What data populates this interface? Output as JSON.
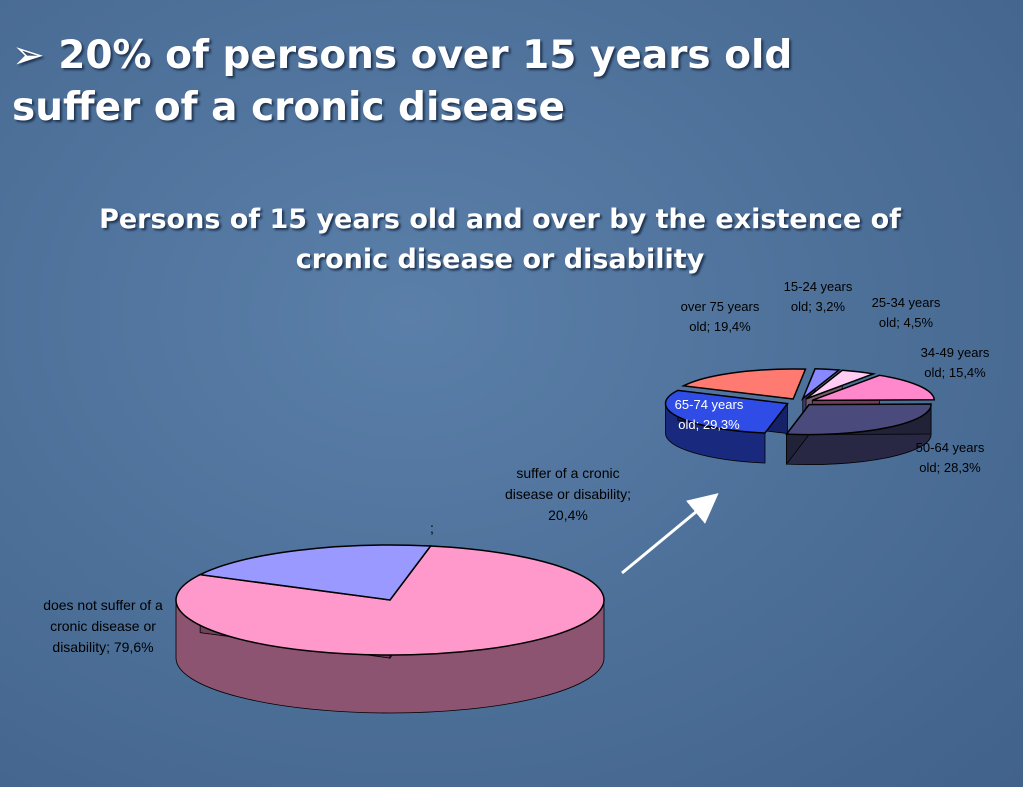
{
  "heading": "➢ 20% of persons over 15 years old suffer of a cronic disease",
  "chart_data": [
    {
      "type": "pie",
      "title": "Persons of 15 years old and over by the existence of cronic disease or disability",
      "values": [
        79.6,
        20.4
      ],
      "value_labels": [
        "does not suffer of a cronic disease or disability; 79,6%",
        "suffer of a cronic disease or disability; 20,4%"
      ],
      "colors": [
        "#ff99cc",
        "#9999ff"
      ],
      "annotations": [
        ";"
      ]
    },
    {
      "type": "pie",
      "values": [
        3.2,
        4.5,
        15.4,
        28.3,
        29.3,
        19.4
      ],
      "value_labels": [
        "15-24 years old; 3,2%",
        "25-34 years old; 4,5%",
        "34-49 years old; 15,4%",
        "50-64 years old; 28,3%",
        "65-74 years old; 29,3%",
        "over 75 years old; 19,4%"
      ],
      "colors": [
        "#8888ff",
        "#ffccf4",
        "#ff88cc",
        "#4a4a7c",
        "#2f4de6",
        "#ff7a70"
      ]
    }
  ]
}
